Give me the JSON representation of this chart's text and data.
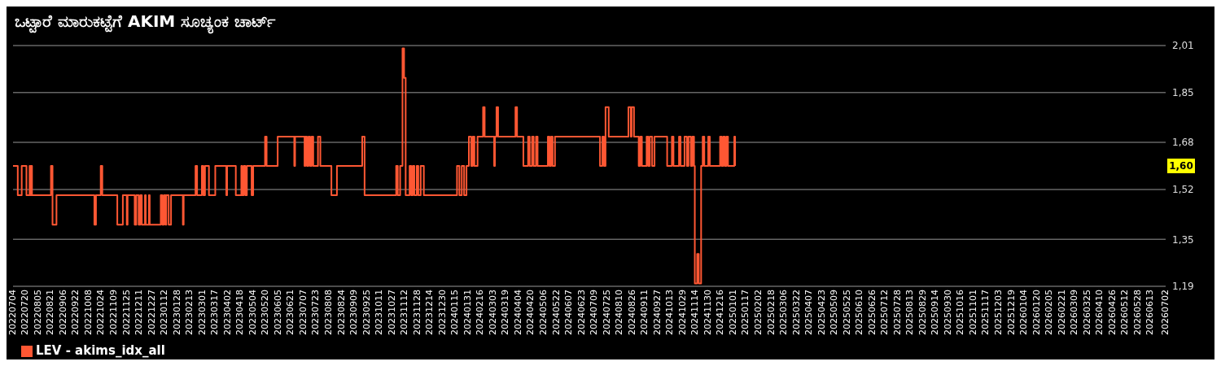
{
  "chart_data": {
    "type": "step",
    "title": "ಒಟ್ಟಾರೆ ಮಾರುಕಟ್ಟೆಗೆ AKIM ಸೂಚ್ಯಂಕ ಚಾರ್ಟ್",
    "legend": "bottom left",
    "grid": "y",
    "marker": "none",
    "line_style": "solid",
    "ylim": [
      1.19,
      2.01
    ],
    "yticks": [
      {
        "value": 1.19,
        "label": "1,19"
      },
      {
        "value": 1.35,
        "label": "1,35"
      },
      {
        "value": 1.52,
        "label": "1,52"
      },
      {
        "value": 1.68,
        "label": "1,68"
      },
      {
        "value": 1.85,
        "label": "1,85"
      },
      {
        "value": 2.01,
        "label": "2,01"
      }
    ],
    "annotations": [
      {
        "text": "1,60",
        "y": 1.6
      }
    ],
    "xlim": [
      "2022-07-04",
      "2026-07-02"
    ],
    "xticks": [
      {
        "value": "2022-07-04",
        "label": "20220704"
      },
      {
        "value": "2022-07-20",
        "label": "20220720"
      },
      {
        "value": "2022-08-05",
        "label": "20220805"
      },
      {
        "value": "2022-08-21",
        "label": "20220821"
      },
      {
        "value": "2022-09-06",
        "label": "20220906"
      },
      {
        "value": "2022-09-22",
        "label": "20220922"
      },
      {
        "value": "2022-10-08",
        "label": "20221008"
      },
      {
        "value": "2022-10-24",
        "label": "20221024"
      },
      {
        "value": "2022-11-09",
        "label": "20221109"
      },
      {
        "value": "2022-11-25",
        "label": "20221125"
      },
      {
        "value": "2022-12-11",
        "label": "20221211"
      },
      {
        "value": "2022-12-27",
        "label": "20221227"
      },
      {
        "value": "2023-01-12",
        "label": "20230112"
      },
      {
        "value": "2023-01-28",
        "label": "20230128"
      },
      {
        "value": "2023-02-13",
        "label": "20230213"
      },
      {
        "value": "2023-03-01",
        "label": "20230301"
      },
      {
        "value": "2023-03-17",
        "label": "20230317"
      },
      {
        "value": "2023-04-02",
        "label": "20230402"
      },
      {
        "value": "2023-04-18",
        "label": "20230418"
      },
      {
        "value": "2023-05-04",
        "label": "20230504"
      },
      {
        "value": "2023-05-20",
        "label": "20230520"
      },
      {
        "value": "2023-06-05",
        "label": "20230605"
      },
      {
        "value": "2023-06-21",
        "label": "20230621"
      },
      {
        "value": "2023-07-07",
        "label": "20230707"
      },
      {
        "value": "2023-07-23",
        "label": "20230723"
      },
      {
        "value": "2023-08-08",
        "label": "20230808"
      },
      {
        "value": "2023-08-24",
        "label": "20230824"
      },
      {
        "value": "2023-09-09",
        "label": "20230909"
      },
      {
        "value": "2023-09-25",
        "label": "20230925"
      },
      {
        "value": "2023-10-11",
        "label": "20231011"
      },
      {
        "value": "2023-10-27",
        "label": "20231027"
      },
      {
        "value": "2023-11-12",
        "label": "20231112"
      },
      {
        "value": "2023-11-28",
        "label": "20231128"
      },
      {
        "value": "2023-12-14",
        "label": "20231214"
      },
      {
        "value": "2023-12-30",
        "label": "20231230"
      },
      {
        "value": "2024-01-15",
        "label": "20240115"
      },
      {
        "value": "2024-01-31",
        "label": "20240131"
      },
      {
        "value": "2024-02-16",
        "label": "20240216"
      },
      {
        "value": "2024-03-03",
        "label": "20240303"
      },
      {
        "value": "2024-03-19",
        "label": "20240319"
      },
      {
        "value": "2024-04-04",
        "label": "20240404"
      },
      {
        "value": "2024-04-20",
        "label": "20240420"
      },
      {
        "value": "2024-05-06",
        "label": "20240506"
      },
      {
        "value": "2024-05-22",
        "label": "20240522"
      },
      {
        "value": "2024-06-07",
        "label": "20240607"
      },
      {
        "value": "2024-06-23",
        "label": "20240623"
      },
      {
        "value": "2024-07-09",
        "label": "20240709"
      },
      {
        "value": "2024-07-25",
        "label": "20240725"
      },
      {
        "value": "2024-08-10",
        "label": "20240810"
      },
      {
        "value": "2024-08-26",
        "label": "20240826"
      },
      {
        "value": "2024-09-11",
        "label": "20240911"
      },
      {
        "value": "2024-09-27",
        "label": "20240927"
      },
      {
        "value": "2024-10-13",
        "label": "20241013"
      },
      {
        "value": "2024-10-29",
        "label": "20241029"
      },
      {
        "value": "2024-11-14",
        "label": "20241114"
      },
      {
        "value": "2024-11-30",
        "label": "20241130"
      },
      {
        "value": "2024-12-16",
        "label": "20241216"
      },
      {
        "value": "2025-01-01",
        "label": "20250101"
      },
      {
        "value": "2025-01-17",
        "label": "20250117"
      },
      {
        "value": "2025-02-02",
        "label": "20250202"
      },
      {
        "value": "2025-02-18",
        "label": "20250218"
      },
      {
        "value": "2025-03-06",
        "label": "20250306"
      },
      {
        "value": "2025-03-22",
        "label": "20250322"
      },
      {
        "value": "2025-04-07",
        "label": "20250407"
      },
      {
        "value": "2025-04-23",
        "label": "20250423"
      },
      {
        "value": "2025-05-09",
        "label": "20250509"
      },
      {
        "value": "2025-05-25",
        "label": "20250525"
      },
      {
        "value": "2025-06-10",
        "label": "20250610"
      },
      {
        "value": "2025-06-26",
        "label": "20250626"
      },
      {
        "value": "2025-07-12",
        "label": "20250712"
      },
      {
        "value": "2025-07-28",
        "label": "20250728"
      },
      {
        "value": "2025-08-13",
        "label": "20250813"
      },
      {
        "value": "2025-08-29",
        "label": "20250829"
      },
      {
        "value": "2025-09-14",
        "label": "20250914"
      },
      {
        "value": "2025-09-30",
        "label": "20250930"
      },
      {
        "value": "2025-10-16",
        "label": "20251016"
      },
      {
        "value": "2025-11-01",
        "label": "20251101"
      },
      {
        "value": "2025-11-17",
        "label": "20251117"
      },
      {
        "value": "2025-12-03",
        "label": "20251203"
      },
      {
        "value": "2025-12-19",
        "label": "20251219"
      },
      {
        "value": "2026-01-04",
        "label": "20260104"
      },
      {
        "value": "2026-01-20",
        "label": "20260120"
      },
      {
        "value": "2026-02-05",
        "label": "20260205"
      },
      {
        "value": "2026-02-21",
        "label": "20260221"
      },
      {
        "value": "2026-03-09",
        "label": "20260309"
      },
      {
        "value": "2026-03-25",
        "label": "20260325"
      },
      {
        "value": "2026-04-10",
        "label": "20260410"
      },
      {
        "value": "2026-04-26",
        "label": "20260426"
      },
      {
        "value": "2026-05-12",
        "label": "20260512"
      },
      {
        "value": "2026-05-28",
        "label": "20260528"
      },
      {
        "value": "2026-06-13",
        "label": "20260613"
      },
      {
        "value": "2026-07-02",
        "label": "20260702"
      }
    ],
    "series": [
      {
        "name": "LEV - akims_idx_all",
        "color": "#ff5733",
        "x": [
          "2022-07-04",
          "2022-07-10",
          "2022-07-15",
          "2022-07-21",
          "2022-07-25",
          "2022-07-26",
          "2022-07-27",
          "2022-07-28",
          "2022-08-21",
          "2022-08-23",
          "2022-08-28",
          "2022-10-15",
          "2022-10-17",
          "2022-10-23",
          "2022-10-25",
          "2022-11-13",
          "2022-11-20",
          "2022-11-25",
          "2022-11-26",
          "2022-12-05",
          "2022-12-07",
          "2022-12-10",
          "2022-12-12",
          "2022-12-14",
          "2022-12-18",
          "2022-12-19",
          "2022-12-23",
          "2022-12-24",
          "2023-01-07",
          "2023-01-09",
          "2023-01-11",
          "2023-01-13",
          "2023-01-14",
          "2023-01-17",
          "2023-01-20",
          "2023-02-04",
          "2023-02-05",
          "2023-02-20",
          "2023-02-22",
          "2023-02-28",
          "2023-03-02",
          "2023-03-04",
          "2023-03-09",
          "2023-03-17",
          "2023-03-31",
          "2023-04-01",
          "2023-04-12",
          "2023-04-19",
          "2023-04-20",
          "2023-04-22",
          "2023-04-24",
          "2023-04-26",
          "2023-05-02",
          "2023-05-04",
          "2023-05-19",
          "2023-05-21",
          "2023-06-04",
          "2023-06-25",
          "2023-06-26",
          "2023-06-27",
          "2023-07-08",
          "2023-07-09",
          "2023-07-11",
          "2023-07-13",
          "2023-07-15",
          "2023-07-17",
          "2023-07-19",
          "2023-07-25",
          "2023-07-28",
          "2023-08-11",
          "2023-08-18",
          "2023-09-19",
          "2023-09-22",
          "2023-11-01",
          "2023-11-03",
          "2023-11-06",
          "2023-11-09",
          "2023-11-11",
          "2023-11-13",
          "2023-11-18",
          "2023-11-20",
          "2023-11-22",
          "2023-11-24",
          "2023-11-27",
          "2023-11-29",
          "2023-12-02",
          "2023-12-06",
          "2024-01-17",
          "2024-01-20",
          "2024-01-23",
          "2024-01-26",
          "2024-01-29",
          "2024-02-01",
          "2024-02-04",
          "2024-02-06",
          "2024-02-08",
          "2024-02-12",
          "2024-02-19",
          "2024-02-21",
          "2024-03-04",
          "2024-03-05",
          "2024-03-07",
          "2024-03-09",
          "2024-03-31",
          "2024-04-02",
          "2024-04-10",
          "2024-04-16",
          "2024-04-18",
          "2024-04-21",
          "2024-04-23",
          "2024-04-26",
          "2024-04-28",
          "2024-05-11",
          "2024-05-13",
          "2024-05-15",
          "2024-05-17",
          "2024-05-20",
          "2024-07-16",
          "2024-07-19",
          "2024-07-21",
          "2024-07-23",
          "2024-07-27",
          "2024-08-21",
          "2024-08-24",
          "2024-08-25",
          "2024-08-28",
          "2024-09-03",
          "2024-09-05",
          "2024-09-07",
          "2024-09-13",
          "2024-09-15",
          "2024-09-17",
          "2024-09-20",
          "2024-09-23",
          "2024-10-09",
          "2024-10-15",
          "2024-10-17",
          "2024-10-24",
          "2024-10-26",
          "2024-10-31",
          "2024-11-03",
          "2024-11-05",
          "2024-11-08",
          "2024-11-10",
          "2024-11-12",
          "2024-11-13",
          "2024-11-16",
          "2024-11-18",
          "2024-11-21",
          "2024-11-23",
          "2024-11-25",
          "2024-11-30",
          "2024-12-02",
          "2024-12-15",
          "2024-12-17",
          "2024-12-19",
          "2024-12-21",
          "2024-12-23",
          "2024-12-25",
          "2025-01-02",
          "2025-01-03"
        ],
        "values": [
          1.6,
          1.5,
          1.6,
          1.5,
          1.6,
          1.5,
          1.6,
          1.5,
          1.6,
          1.4,
          1.5,
          1.4,
          1.5,
          1.6,
          1.5,
          1.4,
          1.5,
          1.4,
          1.5,
          1.4,
          1.5,
          1.4,
          1.5,
          1.4,
          1.5,
          1.4,
          1.5,
          1.4,
          1.5,
          1.4,
          1.5,
          1.4,
          1.5,
          1.4,
          1.5,
          1.4,
          1.5,
          1.6,
          1.5,
          1.6,
          1.5,
          1.6,
          1.5,
          1.6,
          1.5,
          1.6,
          1.5,
          1.6,
          1.5,
          1.6,
          1.5,
          1.6,
          1.5,
          1.6,
          1.7,
          1.6,
          1.7,
          1.6,
          1.7,
          1.7,
          1.6,
          1.7,
          1.6,
          1.7,
          1.6,
          1.7,
          1.6,
          1.7,
          1.6,
          1.5,
          1.6,
          1.7,
          1.5,
          1.6,
          1.5,
          1.6,
          2.0,
          1.9,
          1.5,
          1.6,
          1.5,
          1.6,
          1.5,
          1.6,
          1.5,
          1.6,
          1.5,
          1.6,
          1.5,
          1.6,
          1.5,
          1.6,
          1.7,
          1.6,
          1.7,
          1.6,
          1.7,
          1.8,
          1.7,
          1.6,
          1.7,
          1.8,
          1.7,
          1.8,
          1.7,
          1.6,
          1.7,
          1.6,
          1.7,
          1.6,
          1.7,
          1.6,
          1.7,
          1.6,
          1.7,
          1.6,
          1.7,
          1.6,
          1.7,
          1.6,
          1.8,
          1.7,
          1.8,
          1.7,
          1.8,
          1.7,
          1.6,
          1.7,
          1.6,
          1.7,
          1.6,
          1.7,
          1.6,
          1.7,
          1.6,
          1.7,
          1.6,
          1.7,
          1.6,
          1.7,
          1.6,
          1.7,
          1.6,
          1.7,
          1.6,
          1.2,
          1.3,
          1.2,
          1.6,
          1.7,
          1.6,
          1.7,
          1.6,
          1.7,
          1.6,
          1.7,
          1.6,
          1.7,
          1.6,
          1.7,
          1.6
        ]
      }
    ]
  }
}
